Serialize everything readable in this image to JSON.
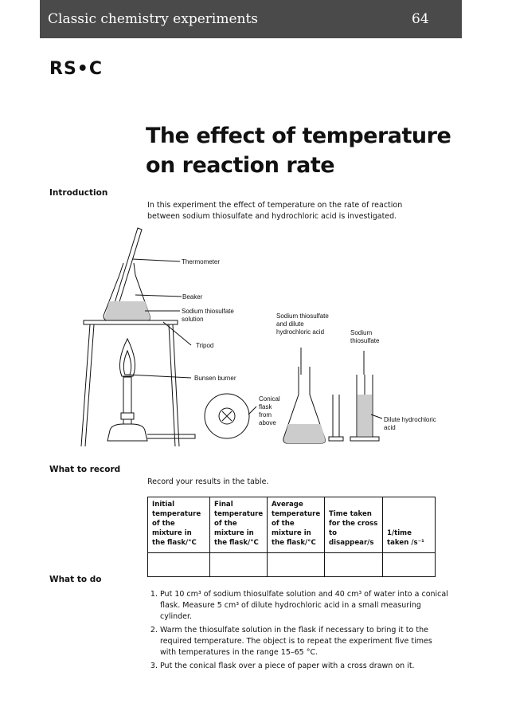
{
  "header": {
    "title": "Classic chemistry experiments",
    "page": "64"
  },
  "logo": "RS•C",
  "title": [
    "The effect of temperature",
    "on reaction rate"
  ],
  "introduction": {
    "heading": "Introduction",
    "text": "In this experiment the effect of temperature on the rate of reaction between sodium thiosulfate and hydrochloric acid is investigated."
  },
  "diagram": {
    "labels": [
      "Thermometer",
      "Beaker",
      "Sodium thiosulfate solution",
      "Tripod",
      "Bunsen burner",
      "Conical flask from above",
      "Sodium thiosulfate and dilute hydrochloric acid",
      "Sodium thiosulfate",
      "Dilute hydrochloric acid"
    ]
  },
  "what_to_record": {
    "heading": "What to record",
    "text": "Record your results in the table.",
    "table": {
      "headers": [
        "Initial temperature of the mixture in the flask/°C",
        "Final temperature of the mixture in the flask/°C",
        "Average temperature of the mixture in the flask/°C",
        "Time taken for the cross to disappear/s",
        "1/time taken /s⁻¹"
      ]
    }
  },
  "what_to_do": {
    "heading": "What to do",
    "steps": [
      "Put 10 cm³ of sodium thiosulfate solution and 40 cm³ of water into a conical flask. Measure 5 cm³ of dilute hydrochloric acid in a small measuring cylinder.",
      "Warm the thiosulfate solution in the flask if necessary to bring it to the required temperature. The object is to repeat the experiment five times with temperatures in the range 15–65 °C.",
      "Put the conical flask over a piece of paper with a cross drawn on it."
    ]
  }
}
